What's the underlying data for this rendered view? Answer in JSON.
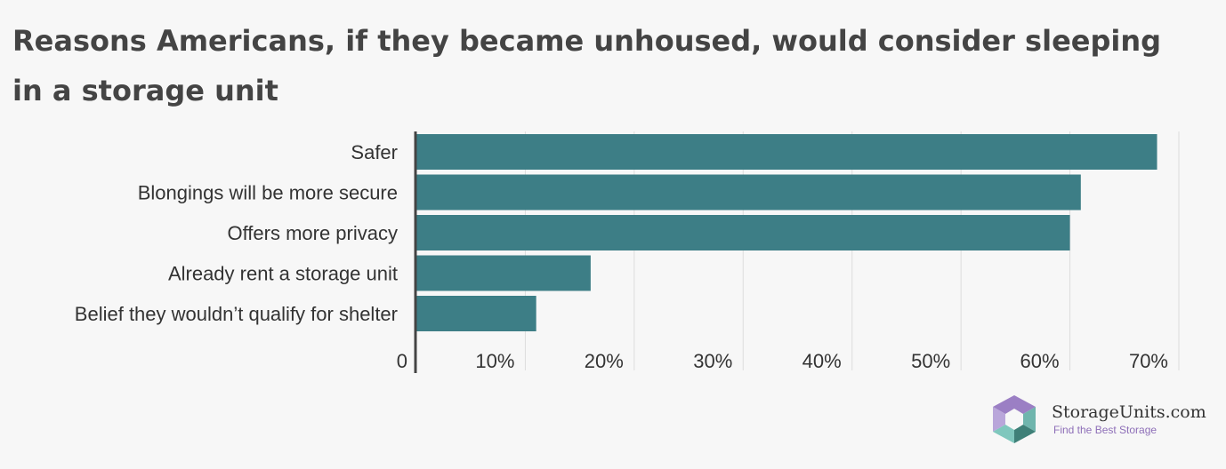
{
  "title": "Reasons Americans, if they became unhoused, would consider sleeping in a storage unit",
  "colors": {
    "bar": "#3d7e86",
    "grid": "#dddddd",
    "axis": "#444444",
    "background": "#f7f7f7"
  },
  "chart_data": {
    "type": "bar",
    "orientation": "horizontal",
    "categories": [
      "Safer",
      "Blongings will be more secure",
      "Offers more privacy",
      "Already rent a storage unit",
      "Belief they wouldn’t qualify for shelter"
    ],
    "values": [
      68,
      61,
      60,
      16,
      11
    ],
    "xlim": [
      0,
      70
    ],
    "x_ticks": [
      0,
      10,
      20,
      30,
      40,
      50,
      60,
      70
    ],
    "x_tick_labels": [
      "0",
      "10%",
      "20%",
      "30%",
      "40%",
      "50%",
      "60%",
      "70%"
    ],
    "grid": true,
    "xlabel": "",
    "ylabel": ""
  },
  "logo": {
    "name": "StorageUnits.com",
    "tagline": "Find the Best Storage"
  }
}
